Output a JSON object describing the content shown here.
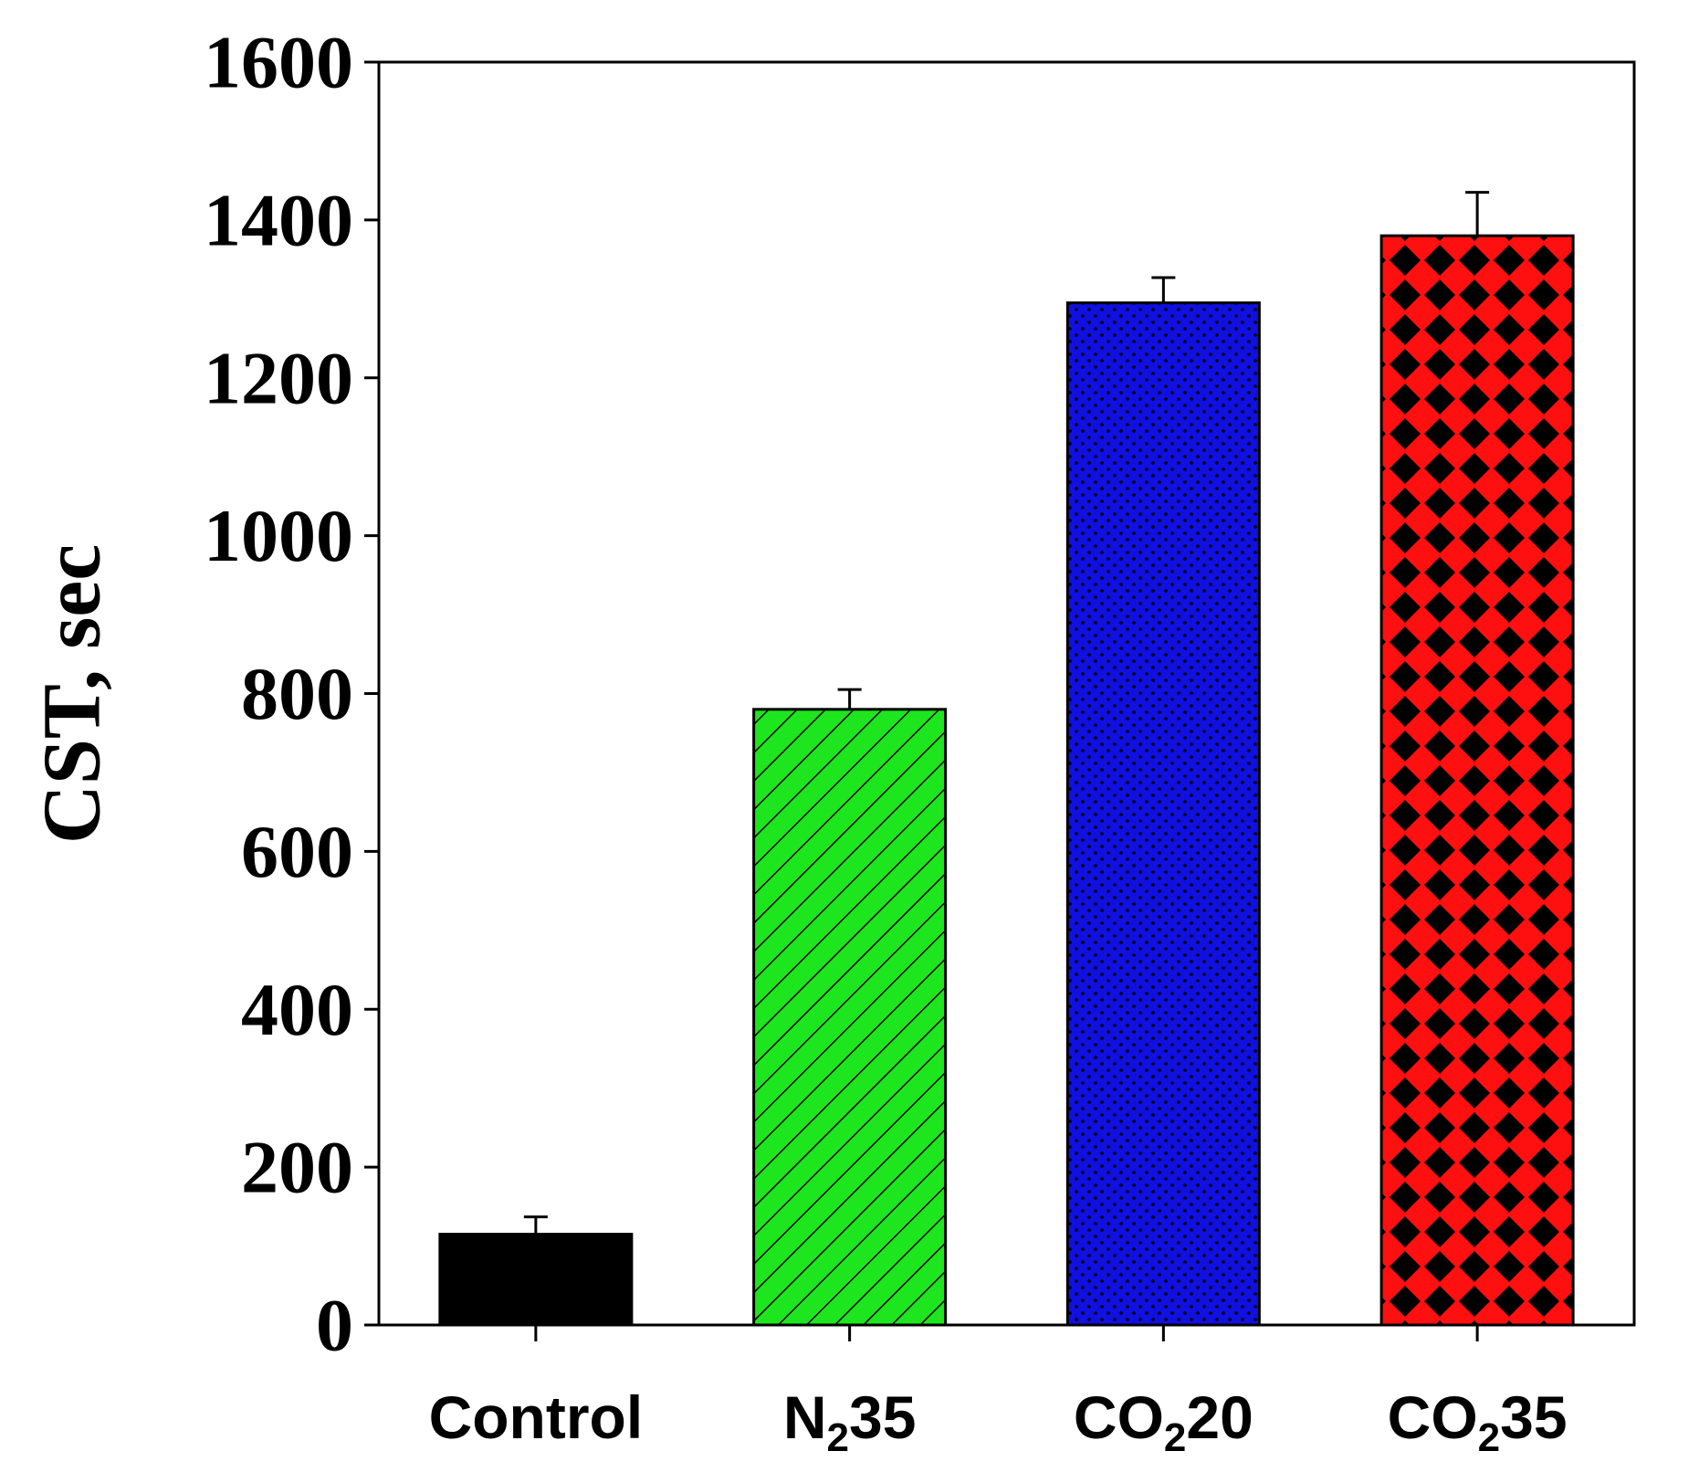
{
  "chart_data": {
    "type": "bar",
    "title": "",
    "xlabel": "",
    "ylabel": "CST, sec",
    "ylim": [
      0,
      1600
    ],
    "yticks": [
      0,
      200,
      400,
      600,
      800,
      1000,
      1200,
      1400,
      1600
    ],
    "ytick_labels": [
      "0",
      "200",
      "400",
      "600",
      "800",
      "1000",
      "1200",
      "1400",
      "1600"
    ],
    "categories": [
      {
        "label": "Control",
        "main": "Control",
        "sub": "",
        "suffix": ""
      },
      {
        "label": "N235",
        "main": "N",
        "sub": "2",
        "suffix": "35"
      },
      {
        "label": "CO220",
        "main": "CO",
        "sub": "2",
        "suffix": "20"
      },
      {
        "label": "CO235",
        "main": "CO",
        "sub": "2",
        "suffix": "35"
      }
    ],
    "values": [
      115,
      780,
      1295,
      1380
    ],
    "errors": [
      22,
      25,
      32,
      55
    ],
    "colors": [
      "#000000",
      "#1ee61e",
      "#1010e0",
      "#ff1010"
    ],
    "patterns": [
      "solid",
      "diagonal",
      "dots",
      "diamonds"
    ],
    "grid": false,
    "legend": "none"
  }
}
